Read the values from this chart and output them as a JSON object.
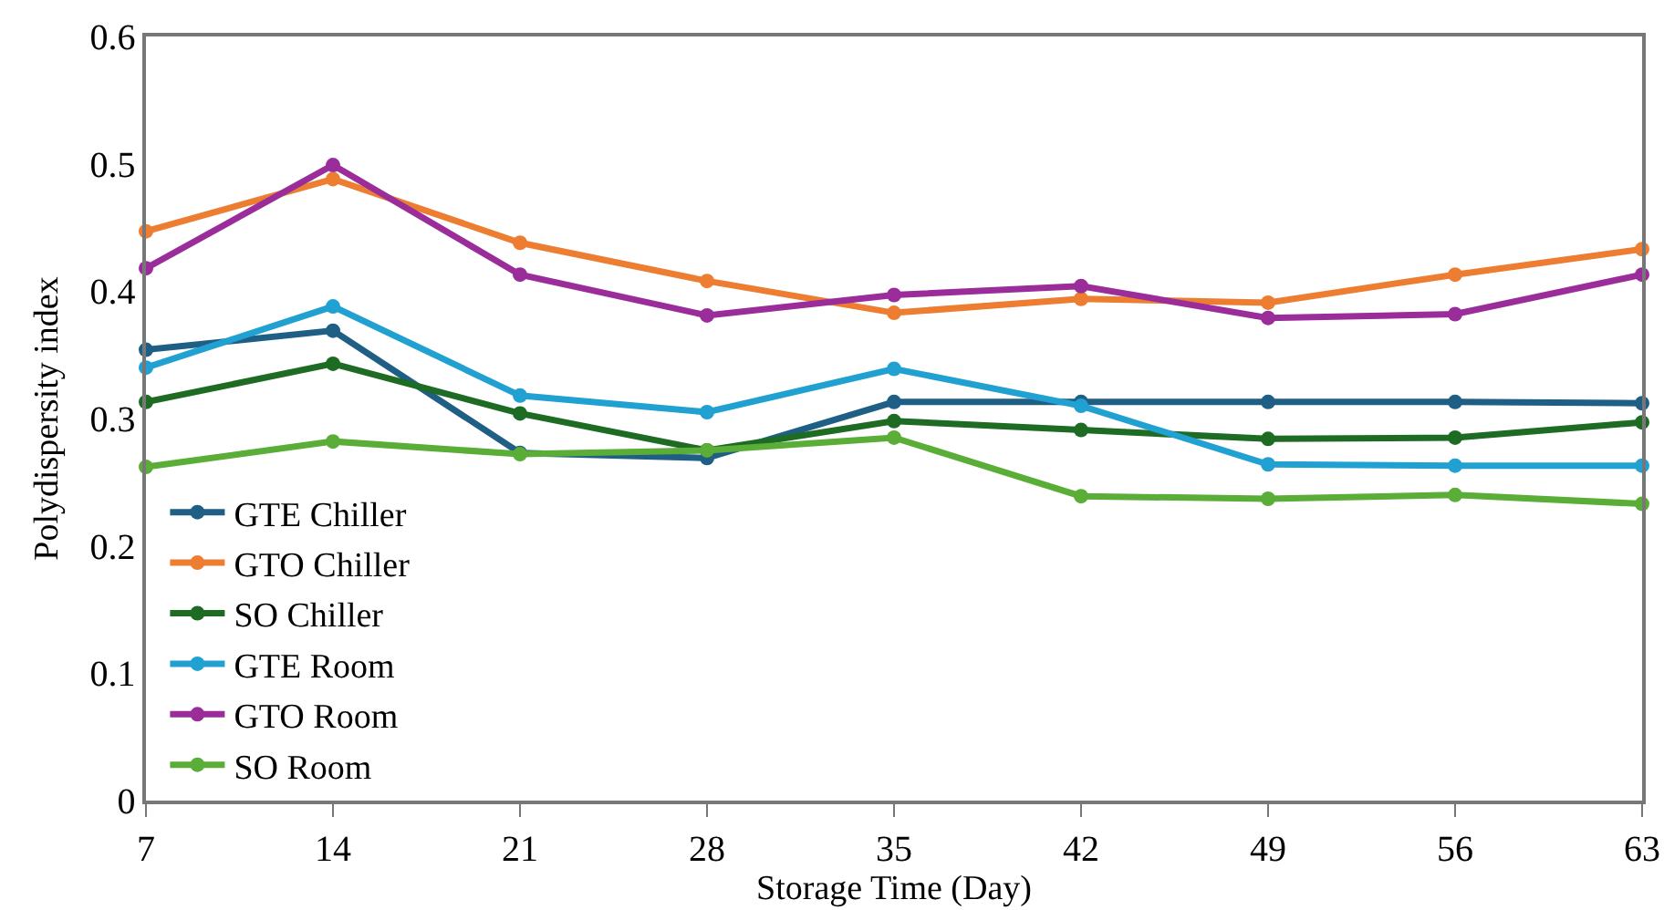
{
  "chart_data": {
    "type": "line",
    "xlabel": "Storage Time (Day)",
    "ylabel": "Polydispersity index",
    "x": [
      7,
      14,
      21,
      28,
      35,
      42,
      49,
      56,
      63
    ],
    "xlim": [
      7,
      63
    ],
    "xticks": [
      7,
      14,
      21,
      28,
      35,
      42,
      49,
      56,
      63
    ],
    "ylim": [
      0,
      0.6
    ],
    "yticks": [
      0,
      0.1,
      0.2,
      0.3,
      0.4,
      0.5,
      0.6
    ],
    "grid": false,
    "legend": "bottom left",
    "marker": "circle",
    "line_style": "solid",
    "series": [
      {
        "name": "GTE Chiller",
        "color": "#1f5f85",
        "values": [
          0.354,
          0.369,
          0.273,
          0.269,
          0.313,
          0.313,
          0.313,
          0.313,
          0.312
        ]
      },
      {
        "name": "GTO Chiller",
        "color": "#ed7d31",
        "values": [
          0.447,
          0.488,
          0.438,
          0.408,
          0.383,
          0.394,
          0.391,
          0.413,
          0.433
        ]
      },
      {
        "name": "SO Chiller",
        "color": "#1e6b24",
        "values": [
          0.313,
          0.343,
          0.304,
          0.275,
          0.298,
          0.291,
          0.284,
          0.285,
          0.297
        ]
      },
      {
        "name": "GTE Room",
        "color": "#21a0d2",
        "values": [
          0.34,
          0.388,
          0.318,
          0.305,
          0.339,
          0.31,
          0.264,
          0.263,
          0.263
        ]
      },
      {
        "name": "GTO Room",
        "color": "#9b2d9b",
        "values": [
          0.418,
          0.499,
          0.413,
          0.381,
          0.397,
          0.404,
          0.379,
          0.382,
          0.413
        ]
      },
      {
        "name": "SO Room",
        "color": "#5aad37",
        "values": [
          0.262,
          0.282,
          0.272,
          0.275,
          0.285,
          0.239,
          0.237,
          0.24,
          0.233
        ]
      }
    ]
  }
}
